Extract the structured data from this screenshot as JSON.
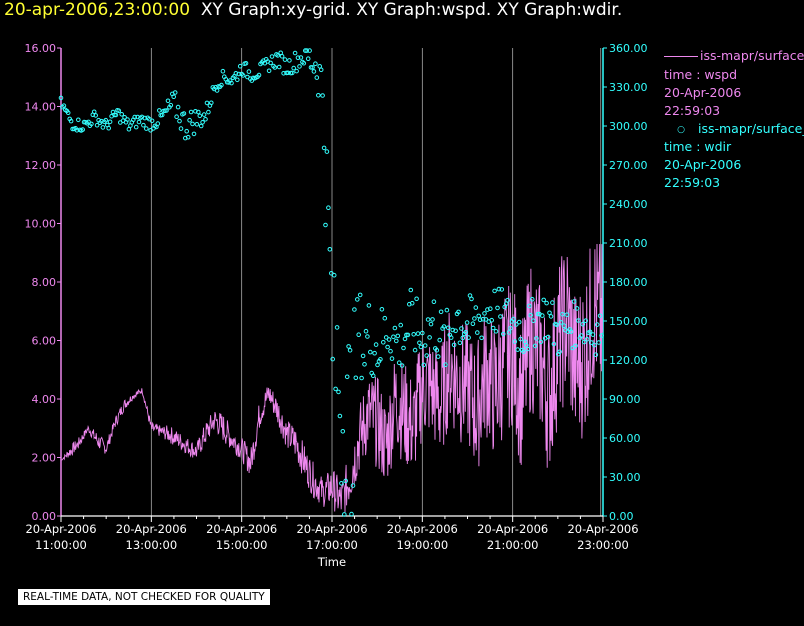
{
  "header": {
    "timestamp": "20-apr-2006,23:00:00",
    "graphs": "XY Graph:xy-grid.  XY Graph:wspd.  XY Graph:wdir."
  },
  "colors": {
    "wspd": "#ee88ee",
    "wdir": "#33ffff",
    "grid": "#aaaaaa",
    "timestamp": "#ffff33"
  },
  "legend": {
    "wspd": {
      "name": "iss-mapr/surface_m",
      "line1": "time : wspd",
      "line2": "20-Apr-2006",
      "line3": "22:59:03"
    },
    "wdir": {
      "name": "iss-mapr/surface_m",
      "line1": "time : wdir",
      "line2": "20-Apr-2006",
      "line3": "22:59:03"
    }
  },
  "footer": {
    "quality": "REAL-TIME DATA, NOT CHECKED FOR QUALITY"
  },
  "chart_data": {
    "type": "line",
    "xlabel": "Time",
    "x_range_hours": [
      11,
      23
    ],
    "x_ticks": [
      {
        "hour": 11,
        "date": "20-Apr-2006",
        "time": "11:00:00"
      },
      {
        "hour": 13,
        "date": "20-Apr-2006",
        "time": "13:00:00"
      },
      {
        "hour": 15,
        "date": "20-Apr-2006",
        "time": "15:00:00"
      },
      {
        "hour": 17,
        "date": "20-Apr-2006",
        "time": "17:00:00"
      },
      {
        "hour": 19,
        "date": "20-Apr-2006",
        "time": "19:00:00"
      },
      {
        "hour": 21,
        "date": "20-Apr-2006",
        "time": "21:00:00"
      },
      {
        "hour": 23,
        "date": "20-Apr-2006",
        "time": "23:00:00"
      }
    ],
    "y_left": {
      "range": [
        0,
        16
      ],
      "ticks": [
        "0.00",
        "2.00",
        "4.00",
        "6.00",
        "8.00",
        "10.00",
        "12.00",
        "14.00",
        "16.00"
      ]
    },
    "y_right": {
      "range": [
        0,
        360
      ],
      "ticks": [
        "0.00",
        "30.00",
        "60.00",
        "90.00",
        "120.00",
        "150.00",
        "180.00",
        "210.00",
        "240.00",
        "270.00",
        "300.00",
        "330.00",
        "360.00"
      ]
    },
    "series": [
      {
        "name": "wspd",
        "style": "line",
        "axis": "left",
        "hours": [
          11.0,
          11.2,
          11.4,
          11.6,
          11.8,
          12.0,
          12.2,
          12.4,
          12.6,
          12.8,
          13.0,
          13.2,
          13.4,
          13.6,
          13.8,
          14.0,
          14.2,
          14.4,
          14.6,
          14.8,
          15.0,
          15.2,
          15.4,
          15.6,
          15.8,
          16.0,
          16.2,
          16.4,
          16.6,
          16.8,
          17.0,
          17.2,
          17.4,
          17.6,
          17.8,
          18.0,
          18.2,
          18.4,
          18.6,
          18.8,
          19.0,
          19.2,
          19.4,
          19.6,
          19.8,
          20.0,
          20.2,
          20.4,
          20.6,
          20.8,
          21.0,
          21.2,
          21.4,
          21.6,
          21.8,
          22.0,
          22.2,
          22.4,
          22.6,
          22.8,
          23.0
        ],
        "values": [
          1.9,
          2.2,
          2.5,
          3.0,
          2.6,
          2.3,
          3.2,
          3.8,
          4.1,
          4.3,
          3.0,
          2.9,
          2.8,
          2.6,
          2.4,
          2.2,
          2.8,
          3.3,
          3.0,
          2.6,
          2.3,
          1.8,
          3.5,
          4.2,
          3.6,
          2.8,
          2.5,
          1.8,
          1.2,
          0.8,
          1.0,
          0.5,
          1.3,
          2.6,
          3.5,
          3.2,
          2.4,
          4.0,
          3.5,
          3.0,
          4.5,
          4.4,
          3.8,
          5.2,
          4.6,
          4.5,
          3.6,
          5.0,
          4.2,
          5.2,
          5.6,
          4.0,
          6.2,
          5.5,
          4.0,
          5.8,
          6.8,
          5.0,
          5.6,
          7.2,
          6.4
        ],
        "noise": [
          0,
          0.2,
          0.2,
          0.1,
          0.3,
          0.2,
          0.2,
          0.2,
          0.1,
          0.1,
          0.2,
          0.2,
          0.3,
          0.3,
          0.3,
          0.3,
          0.4,
          0.4,
          0.5,
          0.4,
          0.4,
          0.5,
          0.5,
          0.4,
          0.5,
          0.5,
          0.6,
          0.6,
          0.6,
          0.5,
          0.7,
          0.7,
          0.9,
          1.2,
          1.4,
          1.6,
          1.6,
          1.7,
          1.8,
          1.8,
          1.9,
          1.9,
          2.0,
          2.0,
          2.2,
          2.1,
          2.3,
          2.3,
          2.4,
          2.5,
          2.5,
          2.6,
          2.6,
          2.6,
          2.7,
          2.7,
          2.8,
          2.8,
          2.8,
          2.8,
          2.9
        ]
      },
      {
        "name": "wdir",
        "style": "scatter",
        "axis": "right",
        "hours": [
          11.0,
          11.25,
          11.5,
          11.75,
          12.0,
          12.25,
          12.5,
          12.75,
          13.0,
          13.25,
          13.5,
          13.75,
          14.0,
          14.2,
          14.4,
          14.6,
          14.8,
          15.0,
          15.2,
          15.4,
          15.6,
          15.8,
          16.0,
          16.2,
          16.4,
          16.6,
          16.7,
          16.75,
          16.8,
          16.9,
          17.0,
          17.05,
          17.1,
          17.2,
          17.3,
          17.4,
          17.5,
          17.6,
          17.7,
          17.8,
          18.0,
          18.25,
          18.5,
          18.75,
          19.0,
          19.25,
          19.5,
          19.75,
          20.0,
          20.25,
          20.5,
          20.75,
          21.0,
          21.25,
          21.5,
          21.75,
          22.0,
          22.25,
          22.5,
          22.75,
          23.0
        ],
        "values": [
          318,
          302,
          300,
          307,
          300,
          310,
          300,
          305,
          302,
          307,
          318,
          300,
          305,
          308,
          330,
          338,
          335,
          345,
          340,
          342,
          348,
          352,
          345,
          350,
          355,
          350,
          345,
          330,
          328,
          230,
          150,
          120,
          115,
          100,
          40,
          60,
          110,
          150,
          125,
          140,
          130,
          145,
          130,
          150,
          135,
          150,
          130,
          155,
          145,
          150,
          160,
          155,
          148,
          140,
          150,
          155,
          140,
          145,
          150,
          140,
          145
        ],
        "noise": [
          4,
          5,
          5,
          5,
          5,
          5,
          5,
          5,
          6,
          7,
          10,
          12,
          10,
          8,
          5,
          5,
          6,
          6,
          6,
          6,
          6,
          7,
          7,
          8,
          10,
          20,
          25,
          30,
          40,
          60,
          70,
          70,
          80,
          90,
          100,
          110,
          50,
          30,
          30,
          30,
          30,
          25,
          25,
          25,
          25,
          25,
          25,
          25,
          25,
          20,
          20,
          20,
          20,
          20,
          20,
          20,
          20,
          18,
          18,
          18,
          18
        ]
      }
    ]
  }
}
